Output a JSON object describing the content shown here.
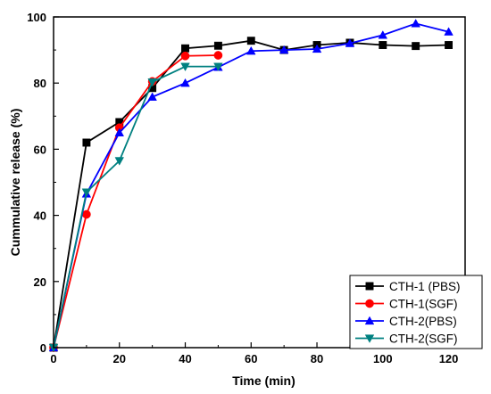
{
  "chart_data": {
    "type": "line",
    "xlabel": "Time (min)",
    "ylabel": "Cummulative release (%)",
    "xlim": [
      0,
      125
    ],
    "ylim": [
      0,
      100
    ],
    "x_ticks": [
      "0",
      "20",
      "40",
      "60",
      "80",
      "100",
      "120"
    ],
    "y_ticks": [
      "0",
      "20",
      "40",
      "60",
      "80",
      "100"
    ],
    "legend_position": "bottom-right",
    "series": [
      {
        "name": "CTH-1 (PBS)",
        "color": "#000000",
        "marker": "square",
        "x": [
          0,
          10,
          20,
          30,
          40,
          50,
          60,
          70,
          80,
          90,
          100,
          110,
          120
        ],
        "y": [
          0,
          62,
          68.2,
          78.5,
          90.5,
          91.3,
          92.8,
          90,
          91.5,
          92.2,
          91.5,
          91.2,
          91.5
        ]
      },
      {
        "name": "CTH-1(SGF)",
        "color": "#ff0000",
        "marker": "circle",
        "x": [
          0,
          10,
          20,
          30,
          40,
          50
        ],
        "y": [
          0,
          40.3,
          66.5,
          80.5,
          88.2,
          88.4
        ]
      },
      {
        "name": "CTH-2(PBS)",
        "color": "#0000ff",
        "marker": "triangle-up",
        "x": [
          0,
          10,
          20,
          30,
          40,
          50,
          60,
          70,
          80,
          90,
          100,
          110,
          120
        ],
        "y": [
          0,
          46.5,
          65,
          75.8,
          80,
          84.8,
          89.7,
          90,
          90.3,
          92,
          94.5,
          98,
          95.5
        ]
      },
      {
        "name": "CTH-2(SGF)",
        "color": "#008080",
        "marker": "triangle-down",
        "x": [
          0,
          10,
          20,
          30,
          40,
          50
        ],
        "y": [
          0,
          47,
          56.5,
          80.3,
          85,
          85
        ]
      }
    ]
  }
}
